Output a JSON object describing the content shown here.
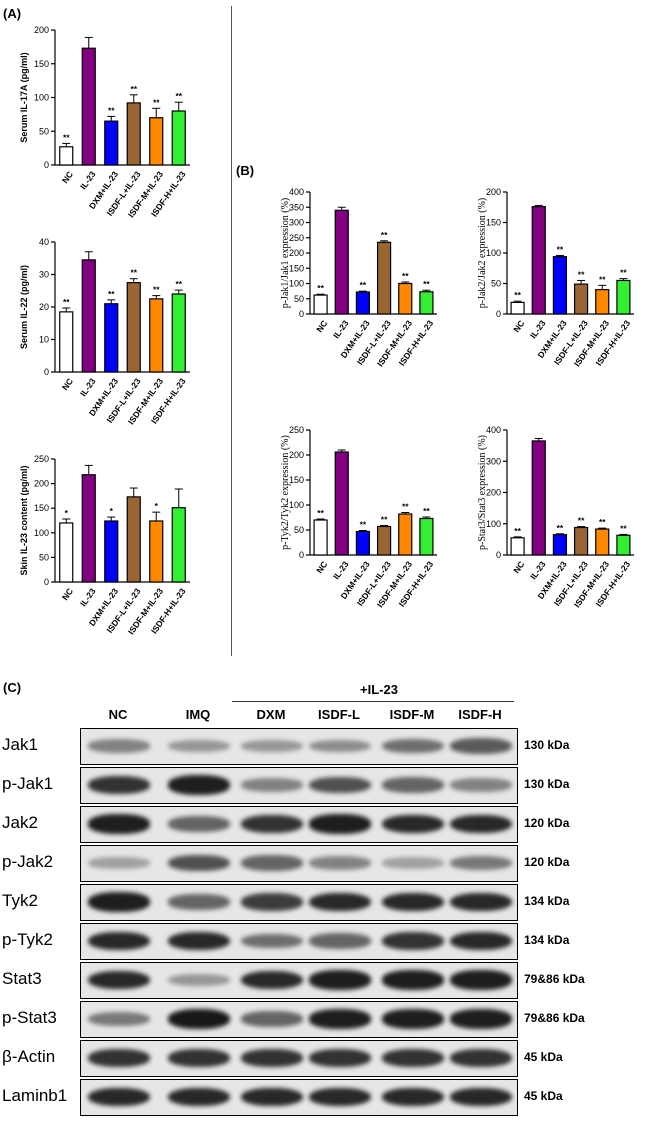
{
  "panels": {
    "a": "(A)",
    "b": "(B)",
    "c": "(C)"
  },
  "categories": [
    "NC",
    "IL-23",
    "DXM+IL-23",
    "ISDF-L+IL-23",
    "ISDF-M+IL-23",
    "ISDF-H+IL-23"
  ],
  "bar_colors": [
    "#ffffff",
    "#800080",
    "#0000ff",
    "#996633",
    "#ff8800",
    "#33ee33"
  ],
  "chart_data": [
    {
      "type": "bar",
      "ylabel": "Serum IL-17A (pg/ml)",
      "ylim": [
        0,
        200
      ],
      "yticks": [
        0,
        50,
        100,
        150,
        200
      ],
      "values": [
        27,
        173,
        65,
        92,
        70,
        80
      ],
      "errors": [
        5,
        16,
        7,
        12,
        14,
        13
      ],
      "sig": [
        "**",
        "",
        "**",
        "**",
        "**",
        "**"
      ]
    },
    {
      "type": "bar",
      "ylabel": "Serum IL-22 (pg/ml)",
      "ylim": [
        0,
        40
      ],
      "yticks": [
        0,
        10,
        20,
        30,
        40
      ],
      "values": [
        18.5,
        34.5,
        21,
        27.5,
        22.5,
        24
      ],
      "errors": [
        1.2,
        2.5,
        1.2,
        1.2,
        1,
        1.2
      ],
      "sig": [
        "**",
        "",
        "**",
        "**",
        "**",
        "**"
      ]
    },
    {
      "type": "bar",
      "ylabel": "Skin IL-23 content (pg/ml)",
      "ylim": [
        0,
        250
      ],
      "yticks": [
        0,
        50,
        100,
        150,
        200,
        250
      ],
      "values": [
        120,
        218,
        124,
        173,
        124,
        151
      ],
      "errors": [
        8,
        19,
        8,
        18,
        18,
        38
      ],
      "sig": [
        "*",
        "",
        "*",
        "",
        "*",
        ""
      ]
    },
    {
      "type": "bar",
      "ylabel": "p-Jak1/Jak1 expression (%)",
      "ylim": [
        0,
        400
      ],
      "yticks": [
        0,
        50,
        100,
        150,
        200,
        250,
        300,
        350,
        400
      ],
      "values": [
        62,
        340,
        72,
        235,
        100,
        73
      ],
      "errors": [
        3,
        10,
        3,
        5,
        5,
        5
      ],
      "sig": [
        "**",
        "",
        "**",
        "**",
        "**",
        "**"
      ]
    },
    {
      "type": "bar",
      "ylabel": "p-Jak2/Jak2 expression (%)",
      "ylim": [
        0,
        200
      ],
      "yticks": [
        0,
        50,
        100,
        150,
        200
      ],
      "values": [
        19,
        176,
        94,
        49,
        40,
        55
      ],
      "errors": [
        2,
        2,
        2,
        6,
        7,
        3
      ],
      "sig": [
        "**",
        "",
        "**",
        "**",
        "**",
        "**"
      ]
    },
    {
      "type": "bar",
      "ylabel": "p-Tyk2/Tyk2 expression (%)",
      "ylim": [
        0,
        250
      ],
      "yticks": [
        0,
        50,
        100,
        150,
        200,
        250
      ],
      "values": [
        70,
        206,
        47,
        57,
        82,
        73
      ],
      "errors": [
        2,
        4,
        2,
        2,
        3,
        3
      ],
      "sig": [
        "**",
        "",
        "**",
        "**",
        "**",
        "**"
      ]
    },
    {
      "type": "bar",
      "ylabel": "p-Stat3/Stat3 expression (%)",
      "ylim": [
        0,
        400
      ],
      "yticks": [
        0,
        100,
        200,
        300,
        400
      ],
      "values": [
        55,
        365,
        65,
        88,
        83,
        63
      ],
      "errors": [
        3,
        8,
        3,
        3,
        3,
        3
      ],
      "sig": [
        "**",
        "",
        "**",
        "**",
        "**",
        "**"
      ]
    }
  ],
  "blot": {
    "lanes": [
      "NC",
      "IMQ",
      "DXM",
      "ISDF-L",
      "ISDF-M",
      "ISDF-H"
    ],
    "group_label": "+IL-23",
    "rows": [
      {
        "label": "Jak1",
        "kda": "130 kDa",
        "intensity": [
          0.45,
          0.35,
          0.35,
          0.4,
          0.55,
          0.65
        ]
      },
      {
        "label": "p-Jak1",
        "kda": "130 kDa",
        "intensity": [
          0.85,
          0.95,
          0.45,
          0.7,
          0.6,
          0.45
        ]
      },
      {
        "label": "Jak2",
        "kda": "120 kDa",
        "intensity": [
          0.95,
          0.6,
          0.85,
          0.95,
          0.9,
          0.9
        ]
      },
      {
        "label": "p-Jak2",
        "kda": "120 kDa",
        "intensity": [
          0.3,
          0.7,
          0.6,
          0.45,
          0.3,
          0.5
        ]
      },
      {
        "label": "Tyk2",
        "kda": "134 kDa",
        "intensity": [
          0.95,
          0.6,
          0.8,
          0.9,
          0.9,
          0.9
        ]
      },
      {
        "label": "p-Tyk2",
        "kda": "134 kDa",
        "intensity": [
          0.9,
          0.9,
          0.55,
          0.6,
          0.85,
          0.9
        ]
      },
      {
        "label": "Stat3",
        "kda": "79&86 kDa",
        "intensity": [
          0.9,
          0.35,
          0.9,
          0.95,
          0.95,
          0.95
        ]
      },
      {
        "label": "p-Stat3",
        "kda": "79&86 kDa",
        "intensity": [
          0.5,
          0.98,
          0.6,
          0.95,
          0.95,
          0.95
        ]
      },
      {
        "label": "β-Actin",
        "kda": "45 kDa",
        "intensity": [
          0.85,
          0.85,
          0.85,
          0.85,
          0.85,
          0.85
        ]
      },
      {
        "label": "Laminb1",
        "kda": "45 kDa",
        "intensity": [
          0.9,
          0.9,
          0.9,
          0.9,
          0.9,
          0.9
        ]
      }
    ]
  }
}
